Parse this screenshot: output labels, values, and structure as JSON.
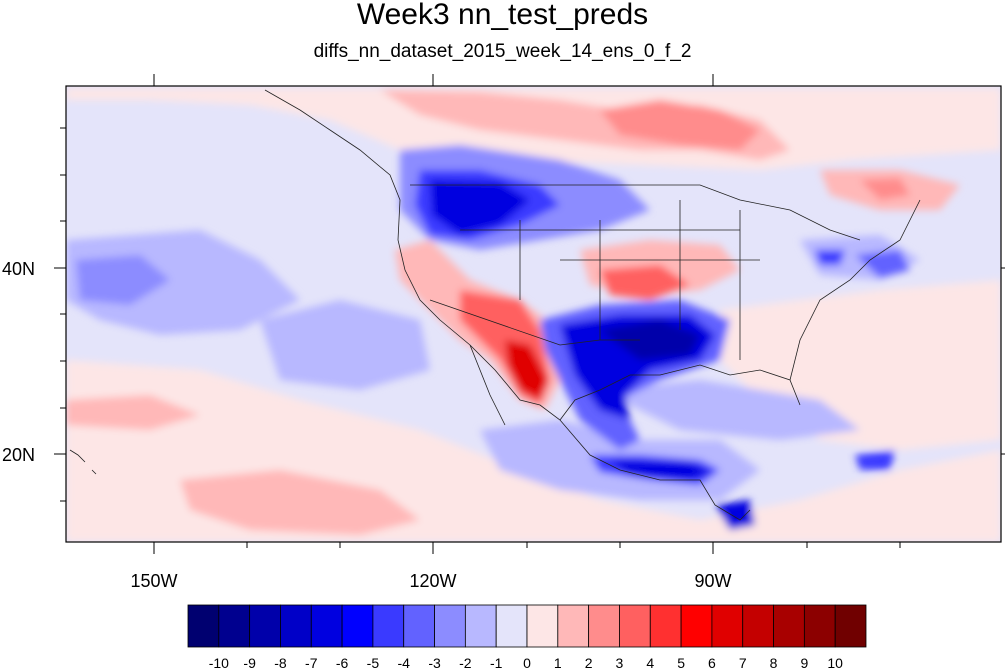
{
  "title": "Week3 nn_test_preds",
  "subtitle": "diffs_nn_dataset_2015_week_14_ens_0_f_2",
  "map": {
    "x_ticks": [
      "150W",
      "120W",
      "90W"
    ],
    "y_ticks": [
      "40N",
      "20N"
    ],
    "extent": {
      "lon": [
        -160,
        -60
      ],
      "lat": [
        10,
        59
      ]
    }
  },
  "colorbar": {
    "labels": [
      "-10",
      "-9",
      "-8",
      "-7",
      "-6",
      "-5",
      "-4",
      "-3",
      "-2",
      "-1",
      "0",
      "1",
      "2",
      "3",
      "4",
      "5",
      "6",
      "7",
      "8",
      "9",
      "10"
    ],
    "colors": [
      "#000070",
      "#00008f",
      "#0000aa",
      "#0000c8",
      "#0000e0",
      "#0000ff",
      "#3a3aff",
      "#6262ff",
      "#8c8cff",
      "#b8b8ff",
      "#e4e4fa",
      "#fde6e6",
      "#ffb8b8",
      "#ff8c8c",
      "#ff6060",
      "#ff3030",
      "#ff0000",
      "#e00000",
      "#c40000",
      "#a80000",
      "#8c0000",
      "#700000"
    ]
  }
}
